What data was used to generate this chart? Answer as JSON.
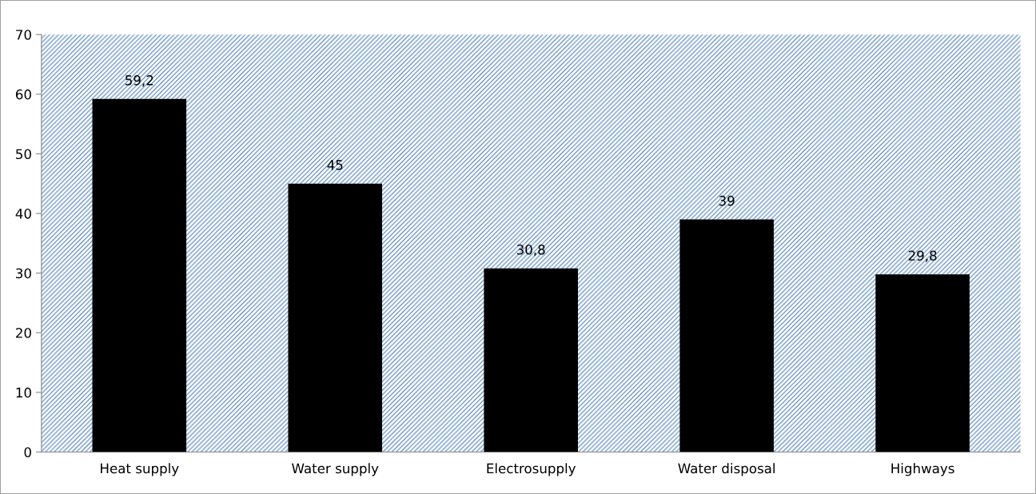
{
  "chart_data": {
    "type": "bar",
    "categories": [
      "Heat supply",
      "Water supply",
      "Electrosupply",
      "Water disposal",
      "Highways"
    ],
    "values": [
      59.2,
      45,
      30.8,
      39,
      29.8
    ],
    "value_labels": [
      "59,2",
      "45",
      "30,8",
      "39",
      "29,8"
    ],
    "color": "#000000",
    "ylim": [
      0,
      70
    ],
    "yticks": [
      0,
      10,
      20,
      30,
      40,
      50,
      60,
      70
    ],
    "grid": false,
    "legend": false
  }
}
